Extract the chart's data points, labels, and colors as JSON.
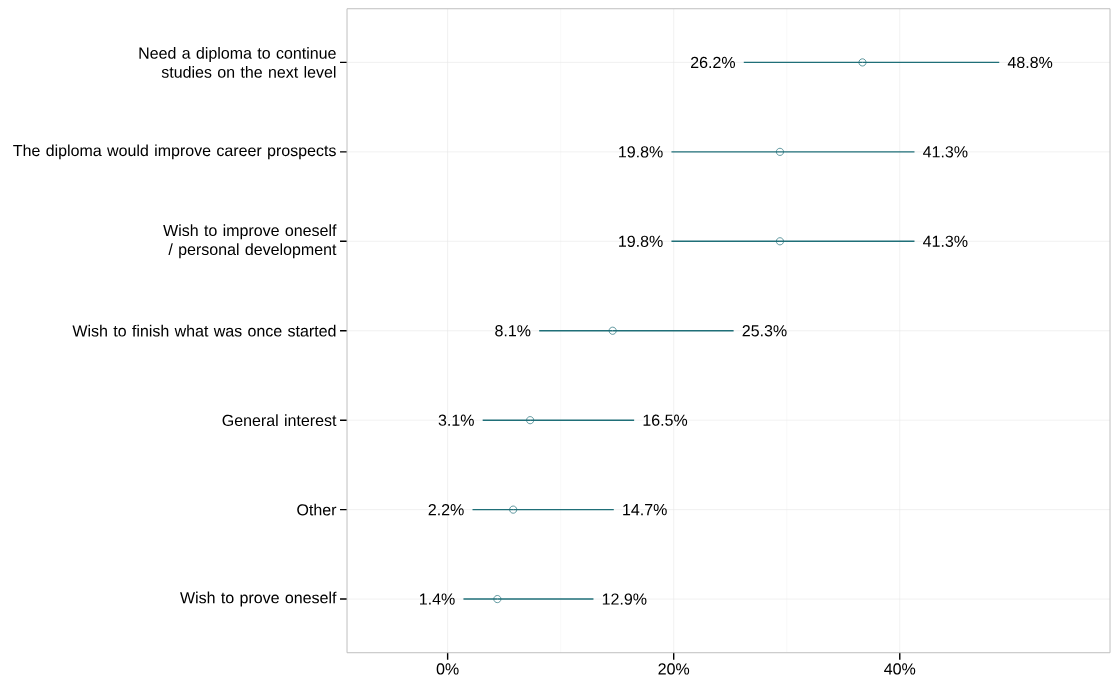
{
  "chart_data": {
    "type": "scatter",
    "orientation": "horizontal",
    "categories": [
      "Need a diploma to continue studies on the next level",
      "The diploma would improve career prospects",
      "Wish to improve oneself / personal development",
      "Wish to finish what was once started",
      "General interest",
      "Other",
      "Wish to prove oneself"
    ],
    "values": [
      36.7,
      29.4,
      29.4,
      14.6,
      7.3,
      5.8,
      4.4
    ],
    "errors": [
      [
        26.2,
        48.8
      ],
      [
        19.8,
        41.3
      ],
      [
        19.8,
        41.3
      ],
      [
        8.1,
        25.3
      ],
      [
        3.1,
        16.5
      ],
      [
        2.2,
        14.7
      ],
      [
        1.4,
        12.9
      ]
    ],
    "color": "#1f6f78",
    "marker": "circle",
    "grid": true,
    "xlim": [
      -8.9,
      58.6
    ],
    "xticks": [
      {
        "value": 0,
        "label": "0%"
      },
      {
        "value": 20,
        "label": "20%"
      },
      {
        "value": 40,
        "label": "40%"
      }
    ],
    "annotations": [
      {
        "text": "26.2%",
        "x": 26.2,
        "y": "Need a diploma to continue studies on the next level"
      },
      {
        "text": "48.8%",
        "x": 48.8,
        "y": "Need a diploma to continue studies on the next level"
      },
      {
        "text": "19.8%",
        "x": 19.8,
        "y": "The diploma would improve career prospects"
      },
      {
        "text": "41.3%",
        "x": 41.3,
        "y": "The diploma would improve career prospects"
      },
      {
        "text": "19.8%",
        "x": 19.8,
        "y": "Wish to improve oneself / personal development"
      },
      {
        "text": "41.3%",
        "x": 41.3,
        "y": "Wish to improve oneself / personal development"
      },
      {
        "text": "8.1%",
        "x": 8.1,
        "y": "Wish to finish what was once started"
      },
      {
        "text": "25.3%",
        "x": 25.3,
        "y": "Wish to finish what was once started"
      },
      {
        "text": "3.1%",
        "x": 3.1,
        "y": "General interest"
      },
      {
        "text": "16.5%",
        "x": 16.5,
        "y": "General interest"
      },
      {
        "text": "2.2%",
        "x": 2.2,
        "y": "Other"
      },
      {
        "text": "14.7%",
        "x": 14.7,
        "y": "Other"
      },
      {
        "text": "1.4%",
        "x": 1.4,
        "y": "Wish to prove oneself"
      },
      {
        "text": "12.9%",
        "x": 12.9,
        "y": "Wish to prove oneself"
      }
    ]
  }
}
